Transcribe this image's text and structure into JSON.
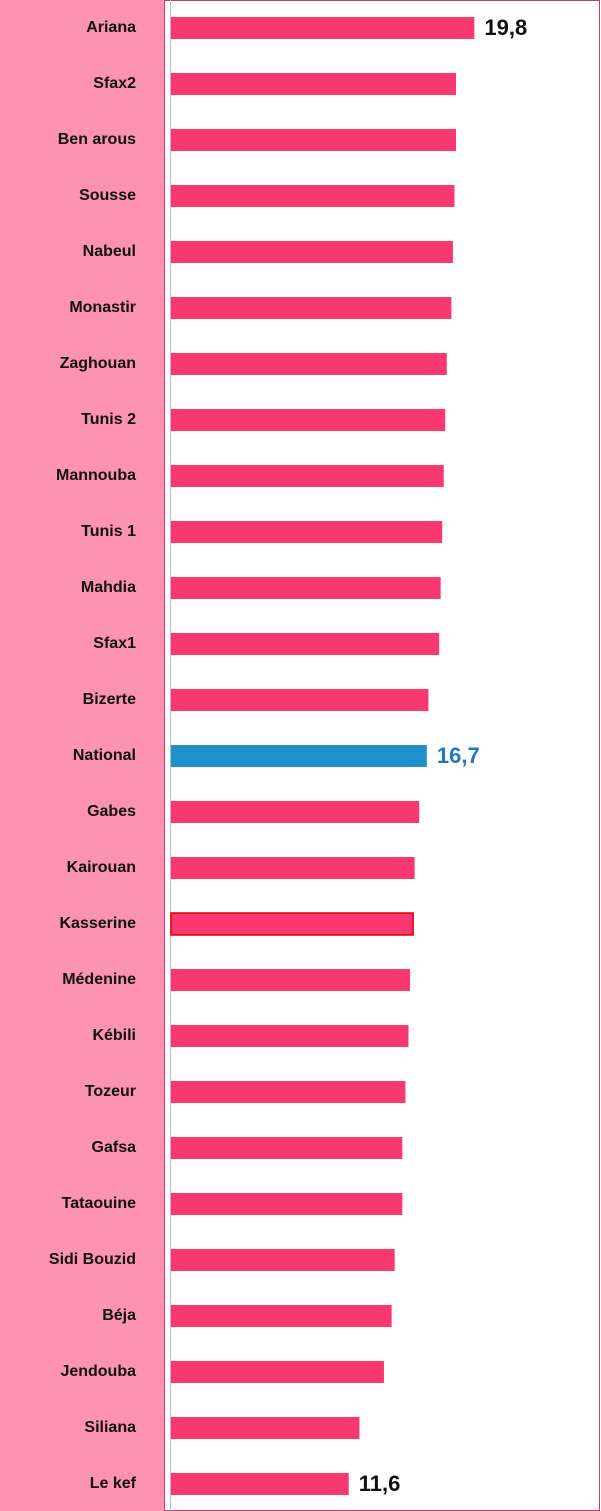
{
  "chart_data": {
    "type": "barh",
    "categories": [
      "Ariana",
      "Sfax2",
      "Ben arous",
      "Sousse",
      "Nabeul",
      "Monastir",
      "Zaghouan",
      "Tunis 2",
      "Mannouba",
      "Tunis 1",
      "Mahdia",
      "Sfax1",
      "Bizerte",
      "National",
      "Gabes",
      "Kairouan",
      "Kasserine",
      "Médenine",
      "Kébili",
      "Tozeur",
      "Gafsa",
      "Tataouine",
      "Sidi Bouzid",
      "Béja",
      "Jendouba",
      "Siliana",
      "Le kef"
    ],
    "values": [
      19.8,
      18.6,
      18.6,
      18.5,
      18.4,
      18.3,
      18.0,
      17.9,
      17.8,
      17.7,
      17.6,
      17.5,
      16.8,
      16.7,
      16.2,
      15.9,
      15.8,
      15.6,
      15.5,
      15.3,
      15.1,
      15.1,
      14.6,
      14.4,
      13.9,
      12.3,
      11.6
    ],
    "value_labels": [
      "19,8",
      null,
      null,
      null,
      null,
      null,
      null,
      null,
      null,
      null,
      null,
      null,
      null,
      "16,7",
      null,
      null,
      null,
      null,
      null,
      null,
      null,
      null,
      null,
      null,
      null,
      null,
      "11,6"
    ],
    "colors": [
      "#f8386f",
      "#f8386f",
      "#f8386f",
      "#f8386f",
      "#f8386f",
      "#f8386f",
      "#f8386f",
      "#f8386f",
      "#f8386f",
      "#f8386f",
      "#f8386f",
      "#f8386f",
      "#f8386f",
      "#2191cb",
      "#f8386f",
      "#f8386f",
      "#f8386f",
      "#f8386f",
      "#f8386f",
      "#f8386f",
      "#f8386f",
      "#f8386f",
      "#f8386f",
      "#f8386f",
      "#f8386f",
      "#f8386f",
      "#f8386f"
    ],
    "label_colors": [
      "#111111",
      null,
      null,
      null,
      null,
      null,
      null,
      null,
      null,
      null,
      null,
      null,
      null,
      "#1f78c1",
      null,
      null,
      null,
      null,
      null,
      null,
      null,
      null,
      null,
      null,
      null,
      null,
      "#111111"
    ],
    "edgecolors": [
      null,
      null,
      null,
      null,
      null,
      null,
      null,
      null,
      null,
      null,
      null,
      null,
      null,
      null,
      null,
      null,
      "#e00000",
      null,
      null,
      null,
      null,
      null,
      null,
      null,
      null,
      null,
      null
    ],
    "xlim": [
      0,
      28
    ]
  }
}
